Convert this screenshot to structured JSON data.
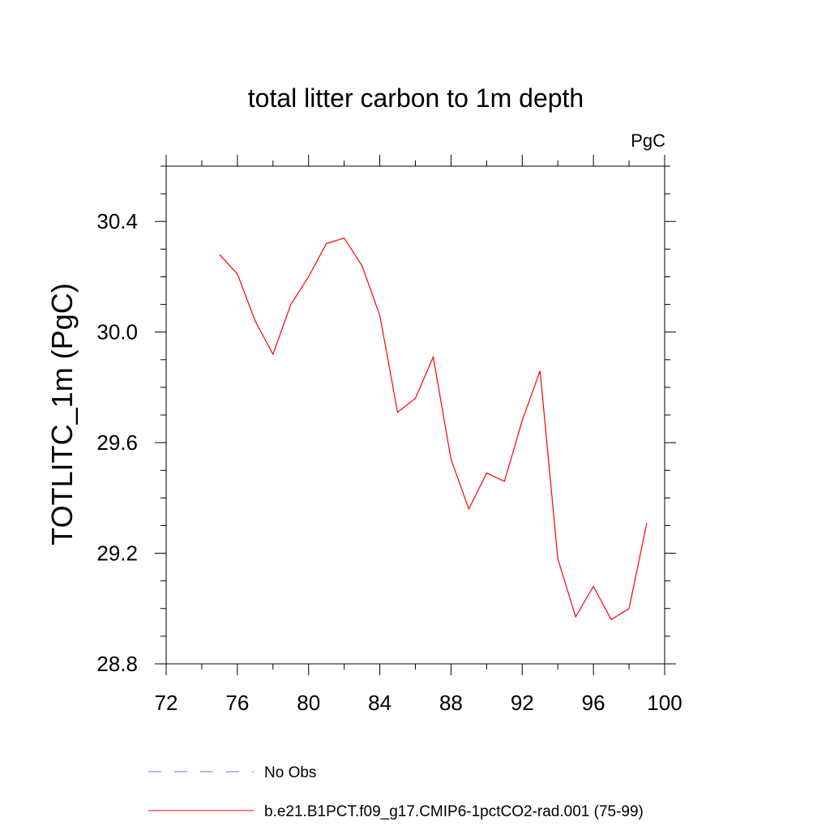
{
  "chart_data": {
    "type": "line",
    "title": "total litter carbon to 1m depth",
    "units": "PgC",
    "ylabel": "TOTLITC_1m  (PgC)",
    "xlabel": "",
    "xlim": [
      72,
      100
    ],
    "ylim": [
      28.8,
      30.6
    ],
    "xticks": [
      72,
      76,
      80,
      84,
      88,
      92,
      96,
      100
    ],
    "xtick_labels": [
      "72",
      "76",
      "80",
      "84",
      "88",
      "92",
      "96",
      "100"
    ],
    "yticks": [
      28.8,
      29.2,
      29.6,
      30.0,
      30.4
    ],
    "ytick_labels": [
      "28.8",
      "29.2",
      "29.6",
      "30.0",
      "30.4"
    ],
    "grid": false,
    "legend_position": "bottom",
    "series": [
      {
        "name": "No Obs",
        "color": "#7b68c8",
        "dash": "dashed",
        "x": [],
        "y": []
      },
      {
        "name": "b.e21.B1PCT.f09_g17.CMIP6-1pctCO2-rad.001 (75-99)",
        "color": "#ff0000",
        "dash": "solid",
        "x": [
          75,
          76,
          77,
          78,
          79,
          80,
          81,
          82,
          83,
          84,
          85,
          86,
          87,
          88,
          89,
          90,
          91,
          92,
          93,
          94,
          95,
          96,
          97,
          98,
          99
        ],
        "y": [
          30.28,
          30.21,
          30.04,
          29.92,
          30.1,
          30.2,
          30.32,
          30.34,
          30.24,
          30.06,
          29.71,
          29.76,
          29.91,
          29.54,
          29.36,
          29.49,
          29.46,
          29.68,
          29.86,
          29.18,
          28.97,
          29.08,
          28.96,
          29.0,
          29.31
        ]
      }
    ]
  }
}
